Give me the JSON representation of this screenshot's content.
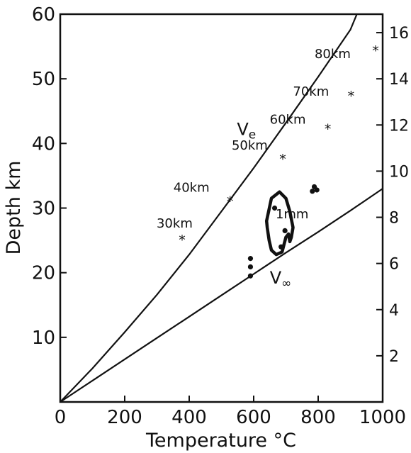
{
  "chart_data": {
    "type": "line",
    "title": "",
    "xlabel": "Temperature °C",
    "ylabel": "Depth km",
    "xlim": [
      0,
      1000
    ],
    "ylim": [
      0,
      60
    ],
    "x_ticks": [
      0,
      200,
      400,
      600,
      800,
      1000
    ],
    "y_ticks": [
      10,
      20,
      30,
      40,
      50,
      60
    ],
    "y2_ticks": [
      2,
      4,
      6,
      8,
      10,
      12,
      14,
      16
    ],
    "y2lim": [
      0,
      16.8
    ],
    "grid": false,
    "series": [
      {
        "name": "Ve",
        "x": [
          0,
          100,
          200,
          300,
          400,
          500,
          600,
          700,
          800,
          900,
          920
        ],
        "y": [
          0,
          5.2,
          10.8,
          16.6,
          22.8,
          29.5,
          36.2,
          43.2,
          50.3,
          57.6,
          60
        ]
      },
      {
        "name": "V∞",
        "x": [
          0,
          100,
          200,
          300,
          400,
          500,
          600,
          700,
          800,
          900,
          1000
        ],
        "y": [
          0,
          3.3,
          6.6,
          9.9,
          13.2,
          16.5,
          19.8,
          23.1,
          26.3,
          29.6,
          33
        ]
      }
    ],
    "star_points": [
      {
        "label": "30km",
        "x": 378,
        "y": 25
      },
      {
        "label": "40km",
        "x": 527,
        "y": 31
      },
      {
        "label": "50km",
        "x": 690,
        "y": 37.5
      },
      {
        "label": "60km",
        "x": 830,
        "y": 42.2
      },
      {
        "label": "70km",
        "x": 902,
        "y": 47.3
      },
      {
        "label": "80km",
        "x": 978,
        "y": 54.3
      }
    ],
    "dot_points": [
      {
        "x": 590,
        "y": 22.2
      },
      {
        "x": 590,
        "y": 20.9
      },
      {
        "x": 590,
        "y": 19.5
      },
      {
        "x": 665,
        "y": 30
      },
      {
        "x": 697,
        "y": 26.5
      },
      {
        "x": 685,
        "y": 24
      },
      {
        "x": 788,
        "y": 33.3
      },
      {
        "x": 782,
        "y": 32.6
      },
      {
        "x": 796,
        "y": 32.8
      }
    ],
    "contour": {
      "label": "1mm",
      "x": [
        640,
        655,
        680,
        700,
        712,
        722,
        717,
        712,
        708,
        700,
        688,
        670,
        655,
        648,
        642,
        640
      ],
      "y": [
        28,
        31.5,
        32.5,
        31.5,
        29.5,
        27,
        25.5,
        24.8,
        26,
        25.5,
        23.2,
        22.8,
        23.5,
        25,
        27,
        28
      ]
    }
  }
}
